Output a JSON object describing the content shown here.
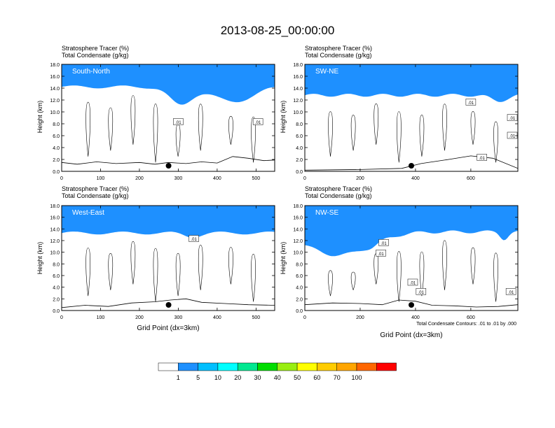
{
  "title": "2013-08-25_00:00:00",
  "chart_data": [
    {
      "type": "heatmap",
      "panel": "South-North",
      "label": "South-North",
      "line1": "Stratosphere Tracer   (%)",
      "line2": "Total Condensate   (g/kg)",
      "xlabel": "",
      "ylabel": "Height (km)",
      "xlim": [
        0,
        548
      ],
      "ylim": [
        0,
        18
      ],
      "xticks": [
        0,
        100,
        200,
        300,
        400,
        500
      ],
      "yticks": [
        0,
        2,
        4,
        6,
        8,
        10,
        12,
        14,
        16,
        18
      ],
      "marker_x": 275,
      "contour_labels": [
        {
          "x": 300,
          "y": 8.3,
          "text": ".01"
        },
        {
          "x": 505,
          "y": 8.3,
          "text": ".01"
        }
      ],
      "tropopause_base_km": 14.2,
      "intrusion": [
        {
          "x": 305,
          "depth_km": 3.0,
          "halfwidth": 40
        },
        {
          "x": 440,
          "depth_km": 2.5,
          "halfwidth": 70
        }
      ],
      "terrain_km": [
        [
          0,
          1.5
        ],
        [
          40,
          1.2
        ],
        [
          90,
          1.6
        ],
        [
          140,
          1.3
        ],
        [
          200,
          1.5
        ],
        [
          240,
          1.2
        ],
        [
          275,
          1.5
        ],
        [
          320,
          1.3
        ],
        [
          360,
          1.6
        ],
        [
          400,
          1.4
        ],
        [
          440,
          2.5
        ],
        [
          480,
          2.2
        ],
        [
          520,
          1.8
        ],
        [
          548,
          1.9
        ]
      ]
    },
    {
      "type": "heatmap",
      "panel": "SW-NE",
      "label": "SW-NE",
      "line1": "Stratosphere Tracer   (%)",
      "line2": "Total Condensate   (g/kg)",
      "xlabel": "",
      "ylabel": "Height (km)",
      "xlim": [
        0,
        770
      ],
      "ylim": [
        0,
        18
      ],
      "xticks": [
        0,
        200,
        400,
        600
      ],
      "yticks": [
        0,
        2,
        4,
        6,
        8,
        10,
        12,
        14,
        16,
        18
      ],
      "marker_x": 385,
      "contour_labels": [
        {
          "x": 600,
          "y": 11.6,
          "text": ".01"
        },
        {
          "x": 750,
          "y": 9.0,
          "text": ".01"
        },
        {
          "x": 880,
          "y": 6.0,
          "text": ".01"
        },
        {
          "x": 640,
          "y": 2.3,
          "text": ".01"
        }
      ],
      "tropopause_base_km": 12.8,
      "intrusion": [
        {
          "x": 700,
          "depth_km": 1.0,
          "halfwidth": 40
        }
      ],
      "terrain_km": [
        [
          0,
          0.2
        ],
        [
          200,
          0.3
        ],
        [
          350,
          0.5
        ],
        [
          420,
          1.3
        ],
        [
          520,
          2.0
        ],
        [
          600,
          2.6
        ],
        [
          680,
          2.2
        ],
        [
          770,
          0.5
        ]
      ]
    },
    {
      "type": "heatmap",
      "panel": "West-East",
      "label": "West-East",
      "line1": "Stratosphere Tracer   (%)",
      "line2": "Total Condensate   (g/kg)",
      "xlabel": "Grid Point (dx=3km)",
      "ylabel": "Height (km)",
      "xlim": [
        0,
        548
      ],
      "ylim": [
        0,
        18
      ],
      "xticks": [
        0,
        100,
        200,
        300,
        400,
        500
      ],
      "yticks": [
        0,
        2,
        4,
        6,
        8,
        10,
        12,
        14,
        16,
        18
      ],
      "marker_x": 275,
      "contour_labels": [
        {
          "x": 340,
          "y": 12.3,
          "text": ".01"
        }
      ],
      "tropopause_base_km": 13.3,
      "intrusion": [
        {
          "x": 335,
          "depth_km": 0.6,
          "halfwidth": 30
        }
      ],
      "terrain_km": [
        [
          0,
          0.5
        ],
        [
          60,
          0.9
        ],
        [
          120,
          0.7
        ],
        [
          180,
          1.3
        ],
        [
          240,
          1.5
        ],
        [
          280,
          1.8
        ],
        [
          320,
          2.0
        ],
        [
          360,
          1.4
        ],
        [
          420,
          1.2
        ],
        [
          480,
          1.0
        ],
        [
          548,
          0.9
        ]
      ]
    },
    {
      "type": "heatmap",
      "panel": "NW-SE",
      "label": "NW-SE",
      "line1": "Stratosphere Tracer   (%)",
      "line2": "Total Condensate   (g/kg)",
      "xlabel": "Grid Point (dx=3km)",
      "ylabel": "Height (km)",
      "xlim": [
        0,
        770
      ],
      "ylim": [
        0,
        18
      ],
      "xticks": [
        0,
        200,
        400,
        600
      ],
      "yticks": [
        0,
        2,
        4,
        6,
        8,
        10,
        12,
        14,
        16,
        18
      ],
      "marker_x": 385,
      "contour_labels": [
        {
          "x": 285,
          "y": 11.6,
          "text": ".01"
        },
        {
          "x": 275,
          "y": 9.8,
          "text": ".01"
        },
        {
          "x": 390,
          "y": 4.8,
          "text": ".01"
        },
        {
          "x": 420,
          "y": 3.2,
          "text": ".01"
        },
        {
          "x": 745,
          "y": 3.2,
          "text": ".01"
        }
      ],
      "tropopause_base_km": 13.5,
      "intrusion": [
        {
          "x": 120,
          "depth_km": 4.0,
          "halfwidth": 160
        },
        {
          "x": 245,
          "depth_km": 0.5,
          "halfwidth": 30
        },
        {
          "x": 720,
          "depth_km": 1.2,
          "halfwidth": 20
        }
      ],
      "terrain_km": [
        [
          0,
          1.0
        ],
        [
          100,
          1.3
        ],
        [
          200,
          1.2
        ],
        [
          280,
          1.0
        ],
        [
          340,
          1.8
        ],
        [
          400,
          1.6
        ],
        [
          460,
          0.9
        ],
        [
          540,
          0.8
        ],
        [
          620,
          0.6
        ],
        [
          700,
          0.7
        ],
        [
          770,
          1.0
        ]
      ]
    }
  ],
  "contour_note": "Total Condensate Contours: .01 to .01 by .000",
  "colorbar": {
    "labels": [
      "1",
      "5",
      "10",
      "20",
      "30",
      "40",
      "50",
      "60",
      "70",
      "100"
    ],
    "colors": [
      "#ffffff",
      "#1e90ff",
      "#00bfff",
      "#00ffff",
      "#00e890",
      "#00dd00",
      "#99ee11",
      "#ffff00",
      "#ffcc00",
      "#ffa500",
      "#ff6600",
      "#ff0000"
    ]
  }
}
